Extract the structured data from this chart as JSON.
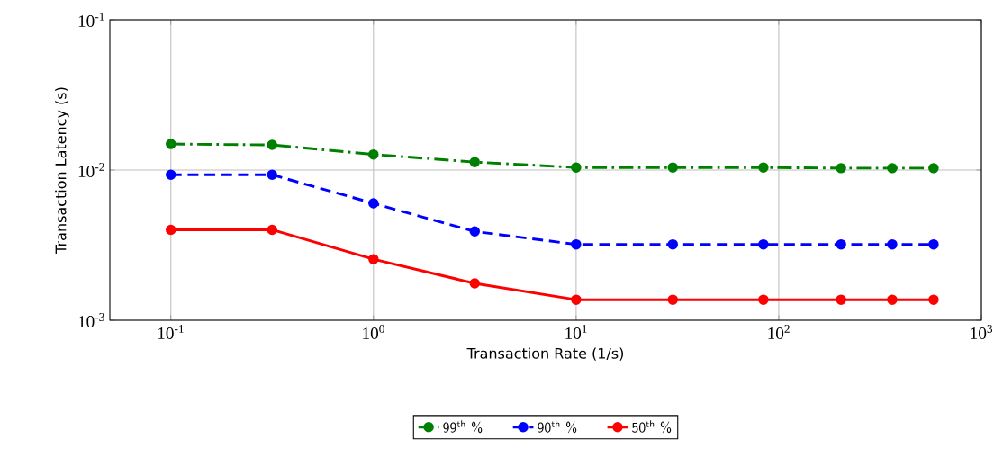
{
  "chart_data": {
    "type": "line",
    "xlabel": "Transaction Rate (1/s)",
    "ylabel": "Transaction Latency (s)",
    "x": [
      0.1,
      0.316,
      1,
      3.16,
      10,
      30,
      84,
      203,
      363,
      581
    ],
    "series": [
      {
        "name": "99$^{th}$ %",
        "color": "#008000",
        "line_style": "dashdot",
        "values": [
          0.0149,
          0.0147,
          0.0127,
          0.0113,
          0.0104,
          0.0104,
          0.0104,
          0.0103,
          0.0103,
          0.0103
        ]
      },
      {
        "name": "90$^{th}$ %",
        "color": "#0000ff",
        "line_style": "dashed",
        "values": [
          0.0093,
          0.0093,
          0.006,
          0.0039,
          0.0032,
          0.0032,
          0.0032,
          0.0032,
          0.0032,
          0.0032
        ]
      },
      {
        "name": "50$^{th}$ %",
        "color": "#ff0000",
        "line_style": "solid",
        "values": [
          0.004,
          0.004,
          0.00255,
          0.00176,
          0.00137,
          0.00137,
          0.00137,
          0.00137,
          0.00137,
          0.00137
        ]
      }
    ],
    "log": "xy",
    "xlim": [
      0.05,
      1000
    ],
    "ylim": [
      0.001,
      0.1
    ],
    "xticks": [
      {
        "value": 0.1,
        "label": "10$^{-1}$"
      },
      {
        "value": 1,
        "label": "10$^{0}$"
      },
      {
        "value": 10,
        "label": "10$^{1}$"
      },
      {
        "value": 100,
        "label": "10$^{2}$"
      },
      {
        "value": 1000,
        "label": "10$^{3}$"
      }
    ],
    "yticks": [
      {
        "value": 0.001,
        "label": "10$^{-3}$"
      },
      {
        "value": 0.01,
        "label": "10$^{-2}$"
      },
      {
        "value": 0.1,
        "label": "10$^{-1}$"
      }
    ],
    "grid": true,
    "legend": "bottom",
    "marker": "circle"
  }
}
